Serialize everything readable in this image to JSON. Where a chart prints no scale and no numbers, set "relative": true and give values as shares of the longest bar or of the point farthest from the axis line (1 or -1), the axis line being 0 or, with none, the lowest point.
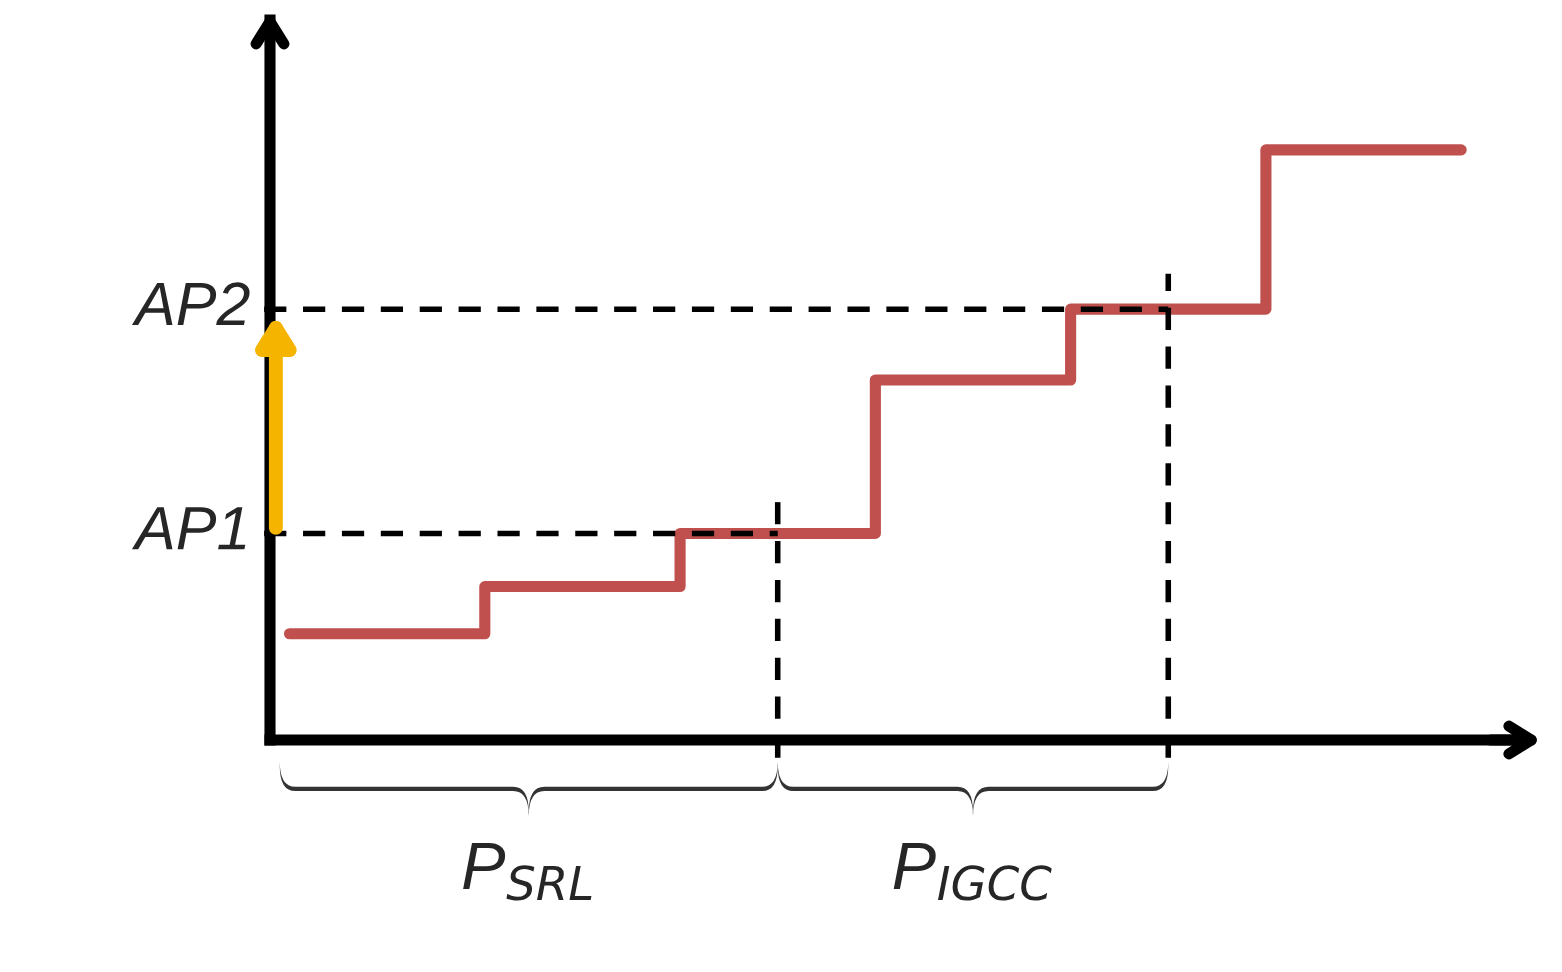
{
  "chart_data": {
    "type": "step",
    "relative": true,
    "categories": [
      null,
      null,
      null,
      null,
      null,
      null,
      null
    ],
    "series": [
      {
        "color": "#c0504d",
        "values": [
          0.18,
          0.26,
          0.35,
          0.61,
          0.73,
          1.0,
          1.0
        ]
      }
    ],
    "ref_lines": [
      {
        "axis": "y",
        "value": 0.35,
        "label": "AP1",
        "line_style": "dashed",
        "color": "#000000"
      },
      {
        "axis": "y",
        "value": 0.73,
        "label": "AP2",
        "line_style": "dashed",
        "color": "#000000"
      }
    ],
    "annotations": [
      "P$_{SRL}$",
      "P$_{IGCC}$"
    ]
  }
}
